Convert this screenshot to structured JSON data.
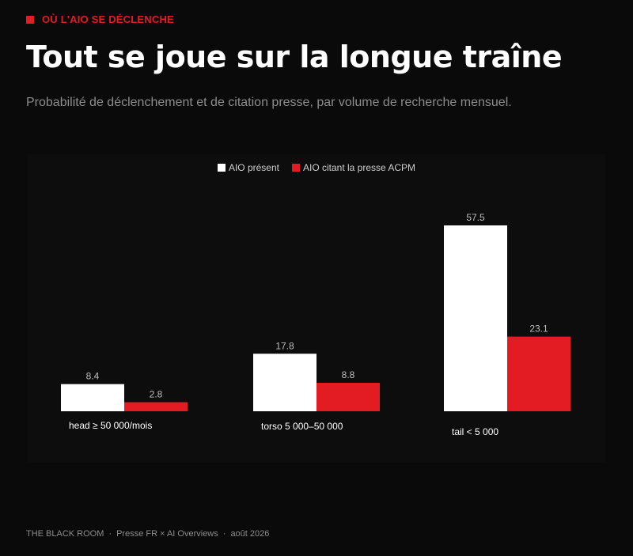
{
  "kicker": "OÙ L'AIO SE DÉCLENCHE",
  "title": "Tout se joue sur la longue traîne",
  "subtitle": "Probabilité de déclenchement et de citation presse, par volume de recherche mensuel.",
  "footer": {
    "brand": "THE BLACK ROOM",
    "sep": "·",
    "source": "Presse FR × AI Overviews",
    "date": "août 2026"
  },
  "colors": {
    "series1": "#ffffff",
    "series2": "#e31b23",
    "value_label": "#bdbdbd"
  },
  "chart_data": {
    "type": "bar",
    "categories": [
      "head ≥ 50 000/mois",
      "torso 5 000–50 000",
      "tail < 5 000"
    ],
    "series": [
      {
        "name": "AIO présent",
        "values": [
          8.4,
          17.8,
          57.5
        ]
      },
      {
        "name": "AIO citant la presse ACPM",
        "values": [
          2.8,
          8.8,
          23.1
        ]
      }
    ],
    "value_labels": [
      [
        "8.4",
        "17.8",
        "57.5"
      ],
      [
        "2.8",
        "8.8",
        "23.1"
      ]
    ],
    "legend_position": "top-center",
    "grid": false,
    "ylim": [
      0,
      57.5
    ]
  }
}
